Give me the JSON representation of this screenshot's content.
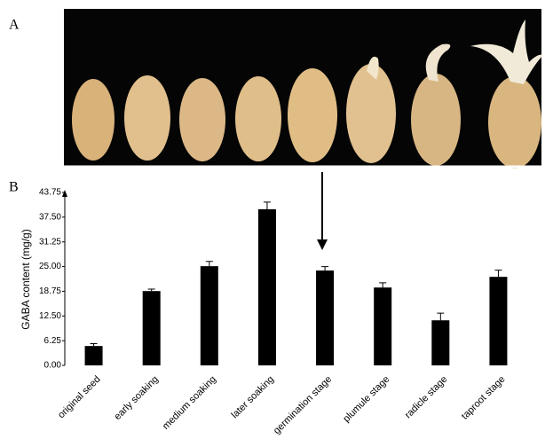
{
  "photo": {
    "label": "A"
  },
  "chart_data": {
    "type": "bar",
    "panel_label": "B",
    "y_label": "GABA content (mg/g)",
    "categories": [
      "original seed",
      "early soaking",
      "medium soaking",
      "later soaking",
      "germination stage",
      "plumule stage",
      "radicle stage",
      "taproot stage"
    ],
    "values": [
      4.9,
      18.8,
      25.1,
      39.5,
      24.0,
      19.7,
      11.4,
      22.4
    ],
    "errors": [
      0.6,
      0.5,
      1.2,
      1.8,
      1.0,
      1.2,
      1.8,
      1.7
    ],
    "color": "#000000",
    "ylim": [
      0,
      43.75
    ],
    "yticks": [
      {
        "value": 0,
        "label": "0.00"
      },
      6.25,
      {
        "value": 12.5,
        "label": "12.50"
      },
      18.75,
      {
        "value": 25,
        "label": "25.00"
      },
      31.25,
      {
        "value": 37.5,
        "label": "37.50"
      },
      43.75
    ],
    "grid": false
  }
}
